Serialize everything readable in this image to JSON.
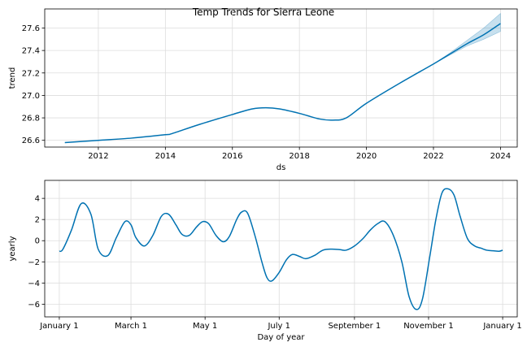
{
  "title": "Temp Trends for Sierra Leone",
  "chart_data": [
    {
      "type": "line",
      "xlabel": "ds",
      "ylabel": "trend",
      "xlim": [
        2010.4,
        2024.5
      ],
      "ylim": [
        26.54,
        27.77
      ],
      "grid": true,
      "x_ticks": [
        2012,
        2014,
        2016,
        2018,
        2020,
        2022,
        2024
      ],
      "x_tick_labels": [
        "2012",
        "2014",
        "2016",
        "2018",
        "2020",
        "2022",
        "2024"
      ],
      "y_ticks": [
        26.6,
        26.8,
        27.0,
        27.2,
        27.4,
        27.6
      ],
      "y_tick_labels": [
        "26.6",
        "26.8",
        "27.0",
        "27.2",
        "27.4",
        "27.6"
      ],
      "series": [
        {
          "x": [
            2011.0,
            2012.0,
            2013.0,
            2014.0,
            2014.2,
            2015.0,
            2016.0,
            2016.6,
            2017.0,
            2017.4,
            2018.0,
            2018.6,
            2019.0,
            2019.4,
            2020.0,
            2021.0,
            2022.0,
            2022.5,
            2023.0,
            2023.5,
            2024.0
          ],
          "y": [
            26.58,
            26.6,
            26.62,
            26.65,
            26.66,
            26.74,
            26.83,
            26.88,
            26.89,
            26.88,
            26.84,
            26.79,
            26.78,
            26.8,
            26.93,
            27.11,
            27.28,
            27.37,
            27.46,
            27.54,
            27.64
          ]
        }
      ],
      "uncertainty_band": {
        "x": [
          2022.0,
          2022.5,
          2023.0,
          2023.5,
          2024.0
        ],
        "lower": [
          27.28,
          27.36,
          27.44,
          27.5,
          27.57
        ],
        "upper": [
          27.28,
          27.38,
          27.49,
          27.6,
          27.73
        ]
      },
      "colors": {
        "line": "#0072b2",
        "band": "#0072b2"
      }
    },
    {
      "type": "line",
      "xlabel": "Day of year",
      "ylabel": "yearly",
      "xlim": [
        -12,
        377
      ],
      "ylim": [
        -7.2,
        5.7
      ],
      "grid": true,
      "x_ticks": [
        0,
        59,
        120,
        181,
        243,
        304,
        365
      ],
      "x_tick_labels": [
        "January 1",
        "March 1",
        "May 1",
        "July 1",
        "September 1",
        "November 1",
        "January 1"
      ],
      "y_ticks": [
        -6,
        -4,
        -2,
        0,
        2,
        4
      ],
      "y_tick_labels": [
        "−6",
        "−4",
        "−2",
        "0",
        "2",
        "4"
      ],
      "series": [
        {
          "x": [
            0,
            3,
            10,
            18,
            26,
            32,
            40,
            47,
            54,
            59,
            63,
            70,
            77,
            84,
            90,
            96,
            101,
            107,
            113,
            118,
            123,
            129,
            135,
            140,
            146,
            150,
            155,
            161,
            167,
            171,
            175,
            181,
            187,
            192,
            198,
            203,
            210,
            217,
            224,
            231,
            236,
            243,
            250,
            256,
            262,
            268,
            275,
            282,
            288,
            294,
            299,
            305,
            310,
            315,
            320,
            325,
            330,
            336,
            342,
            347,
            352,
            357,
            362,
            365
          ],
          "y": [
            -1.0,
            -0.8,
            1.0,
            3.5,
            2.5,
            -0.8,
            -1.4,
            0.3,
            1.8,
            1.5,
            0.3,
            -0.5,
            0.5,
            2.3,
            2.5,
            1.5,
            0.6,
            0.5,
            1.3,
            1.8,
            1.6,
            0.5,
            -0.1,
            0.4,
            2.0,
            2.7,
            2.6,
            0.5,
            -2.1,
            -3.5,
            -3.8,
            -3.0,
            -1.8,
            -1.3,
            -1.5,
            -1.7,
            -1.4,
            -0.9,
            -0.8,
            -0.85,
            -0.9,
            -0.5,
            0.2,
            1.0,
            1.6,
            1.8,
            0.5,
            -2.0,
            -5.3,
            -6.5,
            -5.5,
            -1.5,
            2.0,
            4.5,
            4.9,
            4.3,
            2.3,
            0.2,
            -0.5,
            -0.7,
            -0.9,
            -0.95,
            -1.0,
            -0.9
          ]
        }
      ],
      "colors": {
        "line": "#0072b2"
      }
    }
  ]
}
